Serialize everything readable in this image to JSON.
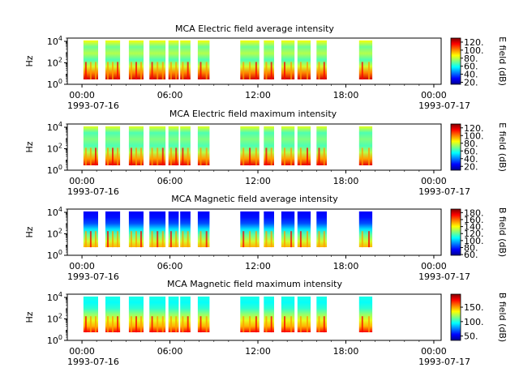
{
  "palette": {
    "colormap": [
      "#00008f",
      "#0000ff",
      "#0080ff",
      "#00ffff",
      "#80ff80",
      "#ffff00",
      "#ff8000",
      "#ff0000",
      "#800000"
    ],
    "empty": "#ffffff",
    "axis": "#000000"
  },
  "x_axis": {
    "ticks": [
      {
        "hour": 0,
        "label": "00:00"
      },
      {
        "hour": 6,
        "label": "06:00"
      },
      {
        "hour": 12,
        "label": "12:00"
      },
      {
        "hour": 18,
        "label": "18:00"
      },
      {
        "hour": 24,
        "label": "00:00"
      }
    ],
    "start_date": "1993-07-16",
    "end_date": "1993-07-17",
    "xlim_hours": [
      -1,
      24.5
    ]
  },
  "chart_data": [
    {
      "type": "heatmap",
      "title": "MCA  Electric field average intensity",
      "ylabel": "Hz",
      "y_scale": "log",
      "ylim": [
        1,
        20000
      ],
      "y_ticks": [
        "10^0",
        "10^2",
        "10^4"
      ],
      "colorbar_label": "E field (dB)",
      "colorbar_range": [
        15,
        130
      ],
      "colorbar_ticks": [
        20,
        40,
        60,
        80,
        100,
        120
      ],
      "colorbar_tick_labels": [
        "20.",
        "40.",
        "60.",
        "80.",
        "100.",
        "120."
      ],
      "data_coverage_hours": [
        [
          0.1,
          1.1
        ],
        [
          1.6,
          2.6
        ],
        [
          3.2,
          4.2
        ],
        [
          4.6,
          5.7
        ],
        [
          5.9,
          6.6
        ],
        [
          6.7,
          7.4
        ],
        [
          7.9,
          8.7
        ],
        [
          10.8,
          12.1
        ],
        [
          12.4,
          13.1
        ],
        [
          13.6,
          14.5
        ],
        [
          14.7,
          15.6
        ],
        [
          16.0,
          16.7
        ],
        [
          18.9,
          19.8
        ]
      ],
      "intensity_profile": "mostly 60-80 dB (cyan-green), with red-orange vertical streaks up to 120 dB at lower frequencies",
      "lowest_frequency_hz": 2.8
    },
    {
      "type": "heatmap",
      "title": "MCA  Electric field maximum intensity",
      "ylabel": "Hz",
      "y_scale": "log",
      "ylim": [
        1,
        20000
      ],
      "y_ticks": [
        "10^0",
        "10^2",
        "10^4"
      ],
      "colorbar_label": "E field (dB)",
      "colorbar_range": [
        10,
        130
      ],
      "colorbar_ticks": [
        20,
        40,
        60,
        80,
        100,
        120
      ],
      "colorbar_tick_labels": [
        "20.",
        "40.",
        "60.",
        "80.",
        "100.",
        "120."
      ],
      "data_coverage_hours": [
        [
          0.1,
          1.1
        ],
        [
          1.6,
          2.6
        ],
        [
          3.2,
          4.2
        ],
        [
          4.6,
          5.7
        ],
        [
          5.9,
          6.6
        ],
        [
          6.7,
          7.4
        ],
        [
          7.9,
          8.7
        ],
        [
          10.8,
          12.1
        ],
        [
          12.4,
          13.1
        ],
        [
          13.6,
          14.5
        ],
        [
          14.7,
          15.6
        ],
        [
          16.0,
          16.7
        ],
        [
          18.9,
          19.8
        ]
      ],
      "intensity_profile": "mostly 60-90 dB (cyan-green), red-orange streaks up to 120 dB below about 1 kHz",
      "lowest_frequency_hz": 2.8
    },
    {
      "type": "heatmap",
      "title": "MCA  Magnetic field average intensity",
      "ylabel": "Hz",
      "y_scale": "log",
      "ylim": [
        1,
        20000
      ],
      "y_ticks": [
        "10^0",
        "10^2",
        "10^4"
      ],
      "colorbar_label": "B field (dB)",
      "colorbar_range": [
        58,
        190
      ],
      "colorbar_ticks": [
        60,
        80,
        100,
        120,
        140,
        160,
        180
      ],
      "colorbar_tick_labels": [
        "60.",
        "80.",
        "100.",
        "120.",
        "140.",
        "160.",
        "180."
      ],
      "data_coverage_hours": [
        [
          0.1,
          1.1
        ],
        [
          1.6,
          2.6
        ],
        [
          3.2,
          4.2
        ],
        [
          4.6,
          5.7
        ],
        [
          5.9,
          6.6
        ],
        [
          6.7,
          7.4
        ],
        [
          7.9,
          8.7
        ],
        [
          10.8,
          12.1
        ],
        [
          12.4,
          13.1
        ],
        [
          13.6,
          14.5
        ],
        [
          14.7,
          15.6
        ],
        [
          16.0,
          16.7
        ],
        [
          18.9,
          19.8
        ]
      ],
      "intensity_profile": "blue (70-90 dB) above about 1 kHz, grading through cyan and green to yellow-orange near 10 Hz",
      "lowest_frequency_hz": 5.6
    },
    {
      "type": "heatmap",
      "title": "MCA  Magnetic field maximum intensity",
      "ylabel": "Hz",
      "y_scale": "log",
      "ylim": [
        1,
        20000
      ],
      "y_ticks": [
        "10^0",
        "10^2",
        "10^4"
      ],
      "colorbar_label": "B field (dB)",
      "colorbar_range": [
        35,
        195
      ],
      "colorbar_ticks": [
        50,
        100,
        150
      ],
      "colorbar_tick_labels": [
        "50.",
        "100.",
        "150."
      ],
      "data_coverage_hours": [
        [
          0.1,
          1.1
        ],
        [
          1.6,
          2.6
        ],
        [
          3.2,
          4.2
        ],
        [
          4.6,
          5.7
        ],
        [
          5.9,
          6.6
        ],
        [
          6.7,
          7.4
        ],
        [
          7.9,
          8.7
        ],
        [
          10.8,
          12.1
        ],
        [
          12.4,
          13.1
        ],
        [
          13.6,
          14.5
        ],
        [
          14.7,
          15.6
        ],
        [
          16.0,
          16.7
        ],
        [
          18.9,
          19.8
        ]
      ],
      "intensity_profile": "cyan (about 100 dB) above 1 kHz, green-yellow below, orange-red up to 180 dB near 10 Hz",
      "lowest_frequency_hz": 5.6
    }
  ]
}
